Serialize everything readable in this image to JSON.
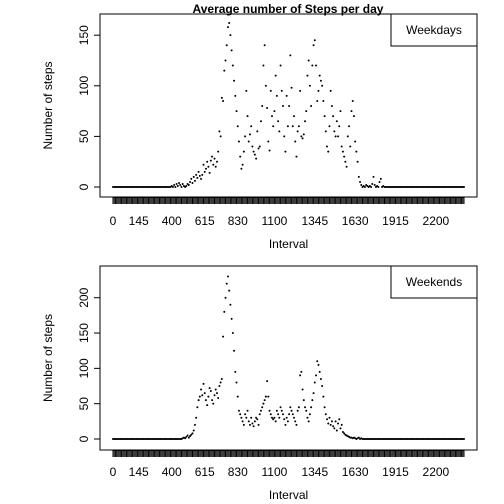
{
  "figure": {
    "title": "Average number of Steps per day"
  },
  "chart_data": [
    {
      "type": "scatter",
      "panel": "top",
      "title": "Average number of Steps per day",
      "legend": "Weekdays",
      "legend_position": "top-right",
      "xlabel": "Interval",
      "ylabel": "Number of steps",
      "xlim": [
        0,
        2355
      ],
      "ylim": [
        0,
        165
      ],
      "x_ticks": [
        "0",
        "145",
        "400",
        "615",
        "830",
        "1100",
        "1345",
        "1630",
        "1915",
        "2200"
      ],
      "y_ticks": [
        "0",
        "50",
        "100",
        "150"
      ],
      "y_tick_values": [
        0,
        50,
        100,
        150
      ],
      "points_per_hour": [
        [
          0,
          0,
          0,
          0,
          0,
          0,
          0,
          0,
          0,
          0,
          0,
          0
        ],
        [
          0,
          0,
          0,
          0,
          0,
          0,
          0,
          0,
          0,
          0,
          0,
          0
        ],
        [
          0,
          0,
          0,
          0,
          0,
          0,
          0,
          0,
          0,
          0,
          0,
          0
        ],
        [
          0,
          0,
          0,
          0,
          0,
          0,
          0,
          0,
          0,
          0,
          0,
          0
        ],
        [
          1,
          0,
          2,
          0,
          3,
          1,
          4,
          2,
          0,
          3,
          1,
          0
        ],
        [
          1,
          3,
          2,
          5,
          8,
          4,
          10,
          6,
          12,
          9,
          15,
          11
        ],
        [
          8,
          12,
          22,
          15,
          18,
          25,
          20,
          14,
          26,
          30,
          22,
          28
        ],
        [
          20,
          25,
          35,
          55,
          50,
          88,
          85,
          115,
          125,
          140,
          158,
          162
        ],
        [
          150,
          135,
          120,
          105,
          90,
          75,
          60,
          45,
          30,
          18,
          22,
          35
        ],
        [
          50,
          95,
          70,
          45,
          52,
          60,
          40,
          35,
          32,
          28,
          55,
          38
        ],
        [
          40,
          65,
          80,
          120,
          140,
          100,
          78,
          45,
          36,
          95,
          70,
          60
        ],
        [
          75,
          110,
          90,
          65,
          55,
          120,
          95,
          80,
          50,
          35,
          90,
          60
        ],
        [
          80,
          130,
          98,
          60,
          70,
          45,
          30,
          55,
          60,
          95,
          50,
          48
        ],
        [
          52,
          65,
          75,
          110,
          125,
          100,
          80,
          120,
          140,
          145,
          120,
          85
        ],
        [
          95,
          110,
          105,
          100,
          85,
          70,
          55,
          40,
          35,
          60,
          95,
          80
        ],
        [
          70,
          55,
          50,
          65,
          50,
          60,
          75,
          40,
          35,
          30,
          25,
          20
        ],
        [
          50,
          60,
          40,
          75,
          85,
          70,
          45,
          35,
          25,
          10,
          5,
          2
        ],
        [
          0,
          1,
          0,
          2,
          1,
          0,
          1,
          0,
          3,
          10,
          2,
          0
        ],
        [
          1,
          0,
          5,
          8,
          0,
          1,
          0,
          0,
          0,
          0,
          0,
          0
        ],
        [
          0,
          0,
          0,
          0,
          0,
          0,
          0,
          0,
          0,
          0,
          0,
          0
        ],
        [
          0,
          0,
          0,
          0,
          0,
          0,
          0,
          0,
          0,
          0,
          0,
          0
        ],
        [
          0,
          0,
          0,
          0,
          0,
          0,
          0,
          0,
          0,
          0,
          0,
          0
        ],
        [
          0,
          0,
          0,
          0,
          0,
          0,
          0,
          0,
          0,
          0,
          0,
          0
        ],
        [
          0,
          0,
          0,
          0,
          0,
          0,
          0,
          0,
          0,
          0,
          0,
          0
        ]
      ]
    },
    {
      "type": "scatter",
      "panel": "bottom",
      "legend": "Weekends",
      "legend_position": "top-right",
      "xlabel": "Interval",
      "ylabel": "Number of steps",
      "xlim": [
        0,
        2355
      ],
      "ylim": [
        0,
        235
      ],
      "x_ticks": [
        "0",
        "145",
        "400",
        "615",
        "830",
        "1100",
        "1345",
        "1630",
        "1915",
        "2200"
      ],
      "y_ticks": [
        "0",
        "50",
        "100",
        "150",
        "200"
      ],
      "y_tick_values": [
        0,
        50,
        100,
        150,
        200
      ],
      "points_per_hour": [
        [
          0,
          0,
          0,
          0,
          0,
          0,
          0,
          0,
          0,
          0,
          0,
          0
        ],
        [
          0,
          0,
          0,
          0,
          0,
          0,
          0,
          0,
          0,
          0,
          0,
          0
        ],
        [
          0,
          0,
          0,
          0,
          0,
          0,
          0,
          0,
          0,
          0,
          0,
          0
        ],
        [
          0,
          0,
          0,
          0,
          0,
          0,
          0,
          0,
          0,
          0,
          0,
          0
        ],
        [
          0,
          0,
          0,
          0,
          0,
          0,
          0,
          0,
          0,
          1,
          2,
          1
        ],
        [
          3,
          5,
          2,
          4,
          6,
          8,
          12,
          20,
          30,
          45,
          55,
          60
        ],
        [
          70,
          62,
          78,
          65,
          55,
          48,
          60,
          72,
          68,
          55,
          50,
          62
        ],
        [
          70,
          65,
          58,
          75,
          80,
          85,
          145,
          180,
          200,
          220,
          230,
          210
        ],
        [
          190,
          170,
          150,
          125,
          95,
          80,
          60,
          40,
          35,
          30,
          25,
          20
        ],
        [
          35,
          30,
          40,
          25,
          20,
          30,
          22,
          18,
          25,
          30,
          28,
          20
        ],
        [
          35,
          40,
          45,
          50,
          55,
          60,
          82,
          60,
          40,
          35,
          30,
          28
        ],
        [
          30,
          25,
          40,
          35,
          30,
          45,
          40,
          35,
          28,
          20,
          30,
          25
        ],
        [
          35,
          45,
          40,
          35,
          30,
          25,
          20,
          40,
          45,
          90,
          95,
          70
        ],
        [
          55,
          45,
          40,
          30,
          25,
          35,
          45,
          55,
          65,
          80,
          90,
          110
        ],
        [
          105,
          95,
          85,
          75,
          60,
          45,
          35,
          28,
          22,
          30,
          20,
          25
        ],
        [
          18,
          15,
          25,
          12,
          22,
          28,
          15,
          20,
          10,
          8,
          6,
          5
        ],
        [
          4,
          3,
          2,
          2,
          1,
          2,
          1,
          0,
          1,
          2,
          0,
          1
        ],
        [
          0,
          0,
          0,
          0,
          0,
          0,
          0,
          0,
          0,
          0,
          0,
          0
        ],
        [
          0,
          0,
          0,
          0,
          0,
          0,
          0,
          0,
          0,
          0,
          0,
          0
        ],
        [
          0,
          0,
          0,
          0,
          0,
          0,
          0,
          0,
          0,
          0,
          0,
          0
        ],
        [
          0,
          0,
          0,
          0,
          0,
          0,
          0,
          0,
          0,
          0,
          0,
          0
        ],
        [
          0,
          0,
          0,
          0,
          0,
          0,
          0,
          0,
          0,
          0,
          0,
          0
        ],
        [
          0,
          0,
          0,
          0,
          0,
          0,
          0,
          0,
          0,
          0,
          0,
          0
        ],
        [
          0,
          0,
          0,
          0,
          0,
          0,
          0,
          0,
          0,
          0,
          0,
          0
        ]
      ]
    }
  ]
}
